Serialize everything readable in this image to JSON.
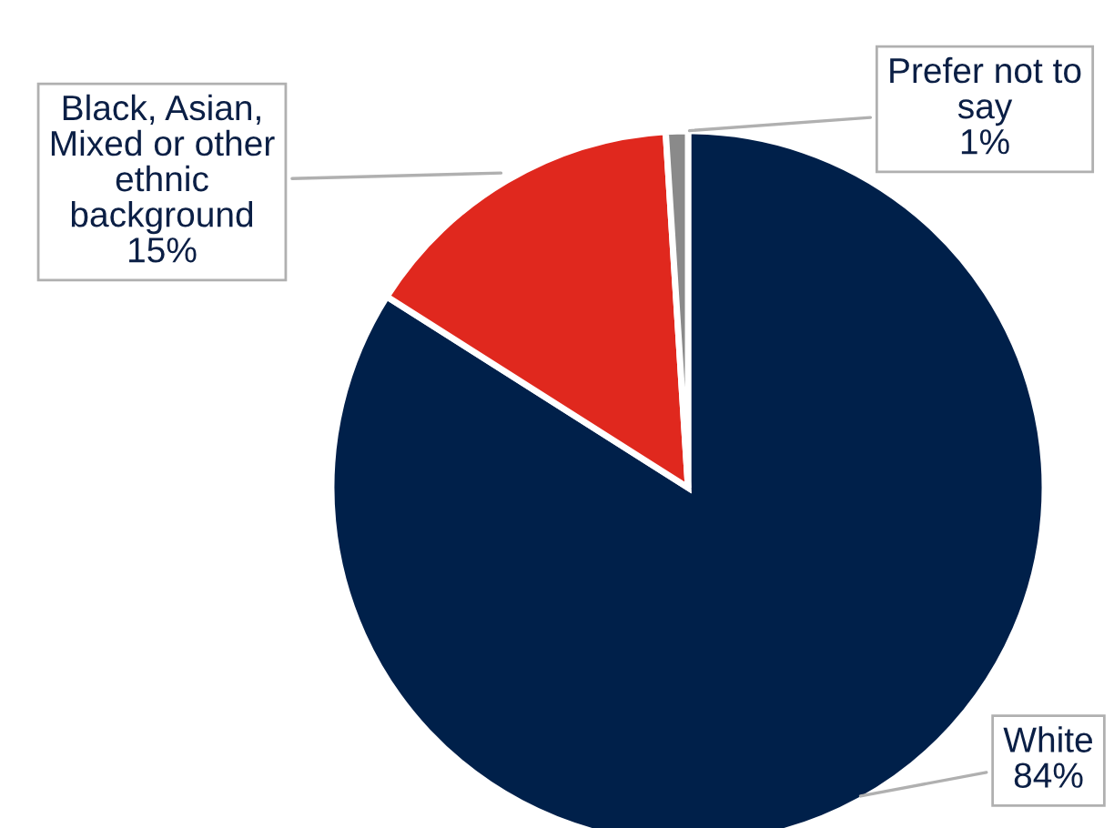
{
  "chart_data": {
    "type": "pie",
    "categories": [
      "White",
      "Black, Asian, Mixed or other ethnic background",
      "Prefer not to say"
    ],
    "values": [
      84,
      15,
      1
    ],
    "colors": [
      "#00204a",
      "#e0281e",
      "#8a8a8a"
    ],
    "value_labels": [
      "84%",
      "15%",
      "1%"
    ],
    "legend": false
  }
}
